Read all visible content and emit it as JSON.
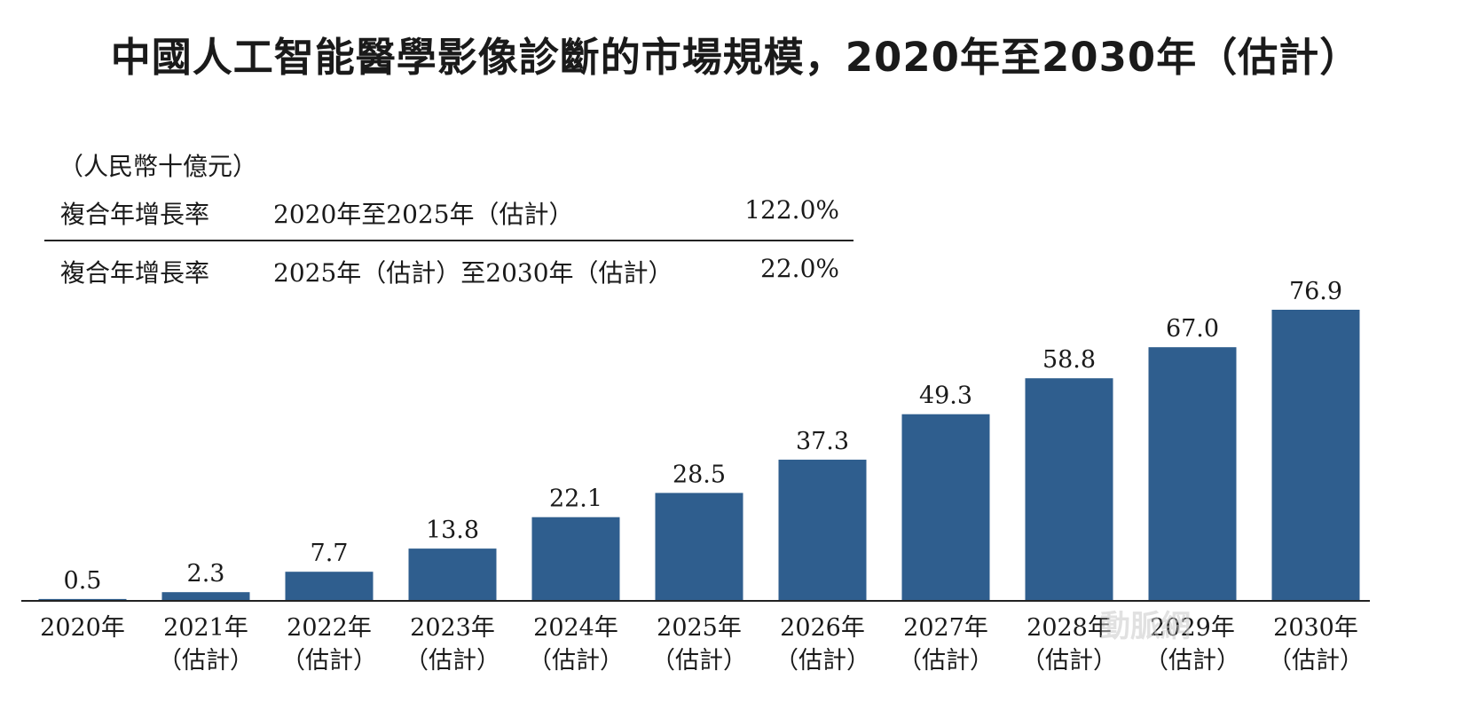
{
  "chart_data": {
    "type": "bar",
    "title": "中國人工智能醫學影像診斷的市場規模，2020年至2030年（估計）",
    "unit_label": "（人民幣十億元）",
    "categories": [
      [
        "2020年",
        ""
      ],
      [
        "2021年",
        "（估計）"
      ],
      [
        "2022年",
        "（估計）"
      ],
      [
        "2023年",
        "（估計）"
      ],
      [
        "2024年",
        "（估計）"
      ],
      [
        "2025年",
        "（估計）"
      ],
      [
        "2026年",
        "（估計）"
      ],
      [
        "2027年",
        "（估計）"
      ],
      [
        "2028年",
        "（估計）"
      ],
      [
        "2029年",
        "（估計）"
      ],
      [
        "2030年",
        "（估計）"
      ]
    ],
    "values": [
      0.5,
      2.3,
      7.7,
      13.8,
      22.1,
      28.5,
      37.3,
      49.3,
      58.8,
      67.0,
      76.9
    ],
    "value_labels": [
      "0.5",
      "2.3",
      "7.7",
      "13.8",
      "22.1",
      "28.5",
      "37.3",
      "49.3",
      "58.8",
      "67.0",
      "76.9"
    ],
    "ylim": [
      0,
      76.9
    ],
    "bar_color": "#2f5e8e",
    "axis_color": "#222222",
    "grid": false,
    "cagr": [
      {
        "label": "複合年增長率",
        "period": "2020年至2025年（估計）",
        "value": "122.0%"
      },
      {
        "label": "複合年增長率",
        "period": "2025年（估計）至2030年（估計）",
        "value": "22.0%"
      }
    ]
  },
  "watermark": "動脈網"
}
